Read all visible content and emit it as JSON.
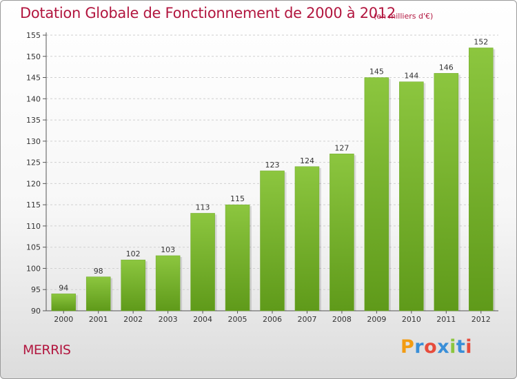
{
  "chart_data": {
    "type": "bar",
    "title": "Dotation Globale de Fonctionnement de 2000 à 2012",
    "subtitle": "(en milliers d'€)",
    "categories": [
      "2000",
      "2001",
      "2002",
      "2003",
      "2004",
      "2005",
      "2006",
      "2007",
      "2008",
      "2009",
      "2010",
      "2011",
      "2012"
    ],
    "values": [
      94,
      98,
      102,
      103,
      113,
      115,
      123,
      124,
      127,
      145,
      144,
      146,
      152
    ],
    "ylim": [
      90,
      155
    ],
    "yticks": [
      90,
      95,
      100,
      105,
      110,
      115,
      120,
      125,
      130,
      135,
      140,
      145,
      150,
      155
    ],
    "xlabel": "",
    "ylabel": "",
    "grid": "horizontal dashed",
    "bar_color": "#8cc63f",
    "bar_color_dark": "#5f9a1a"
  },
  "footer": {
    "place": "MERRIS",
    "logo_letters": [
      "P",
      "r",
      "o",
      "x",
      "i",
      "t",
      "i"
    ],
    "logo_colors": [
      "#f39c12",
      "#3a8fd8",
      "#e74c3c",
      "#3a8fd8",
      "#8cc63f",
      "#3a8fd8",
      "#e74c3c"
    ]
  },
  "colors": {
    "accent": "#b2163f"
  }
}
